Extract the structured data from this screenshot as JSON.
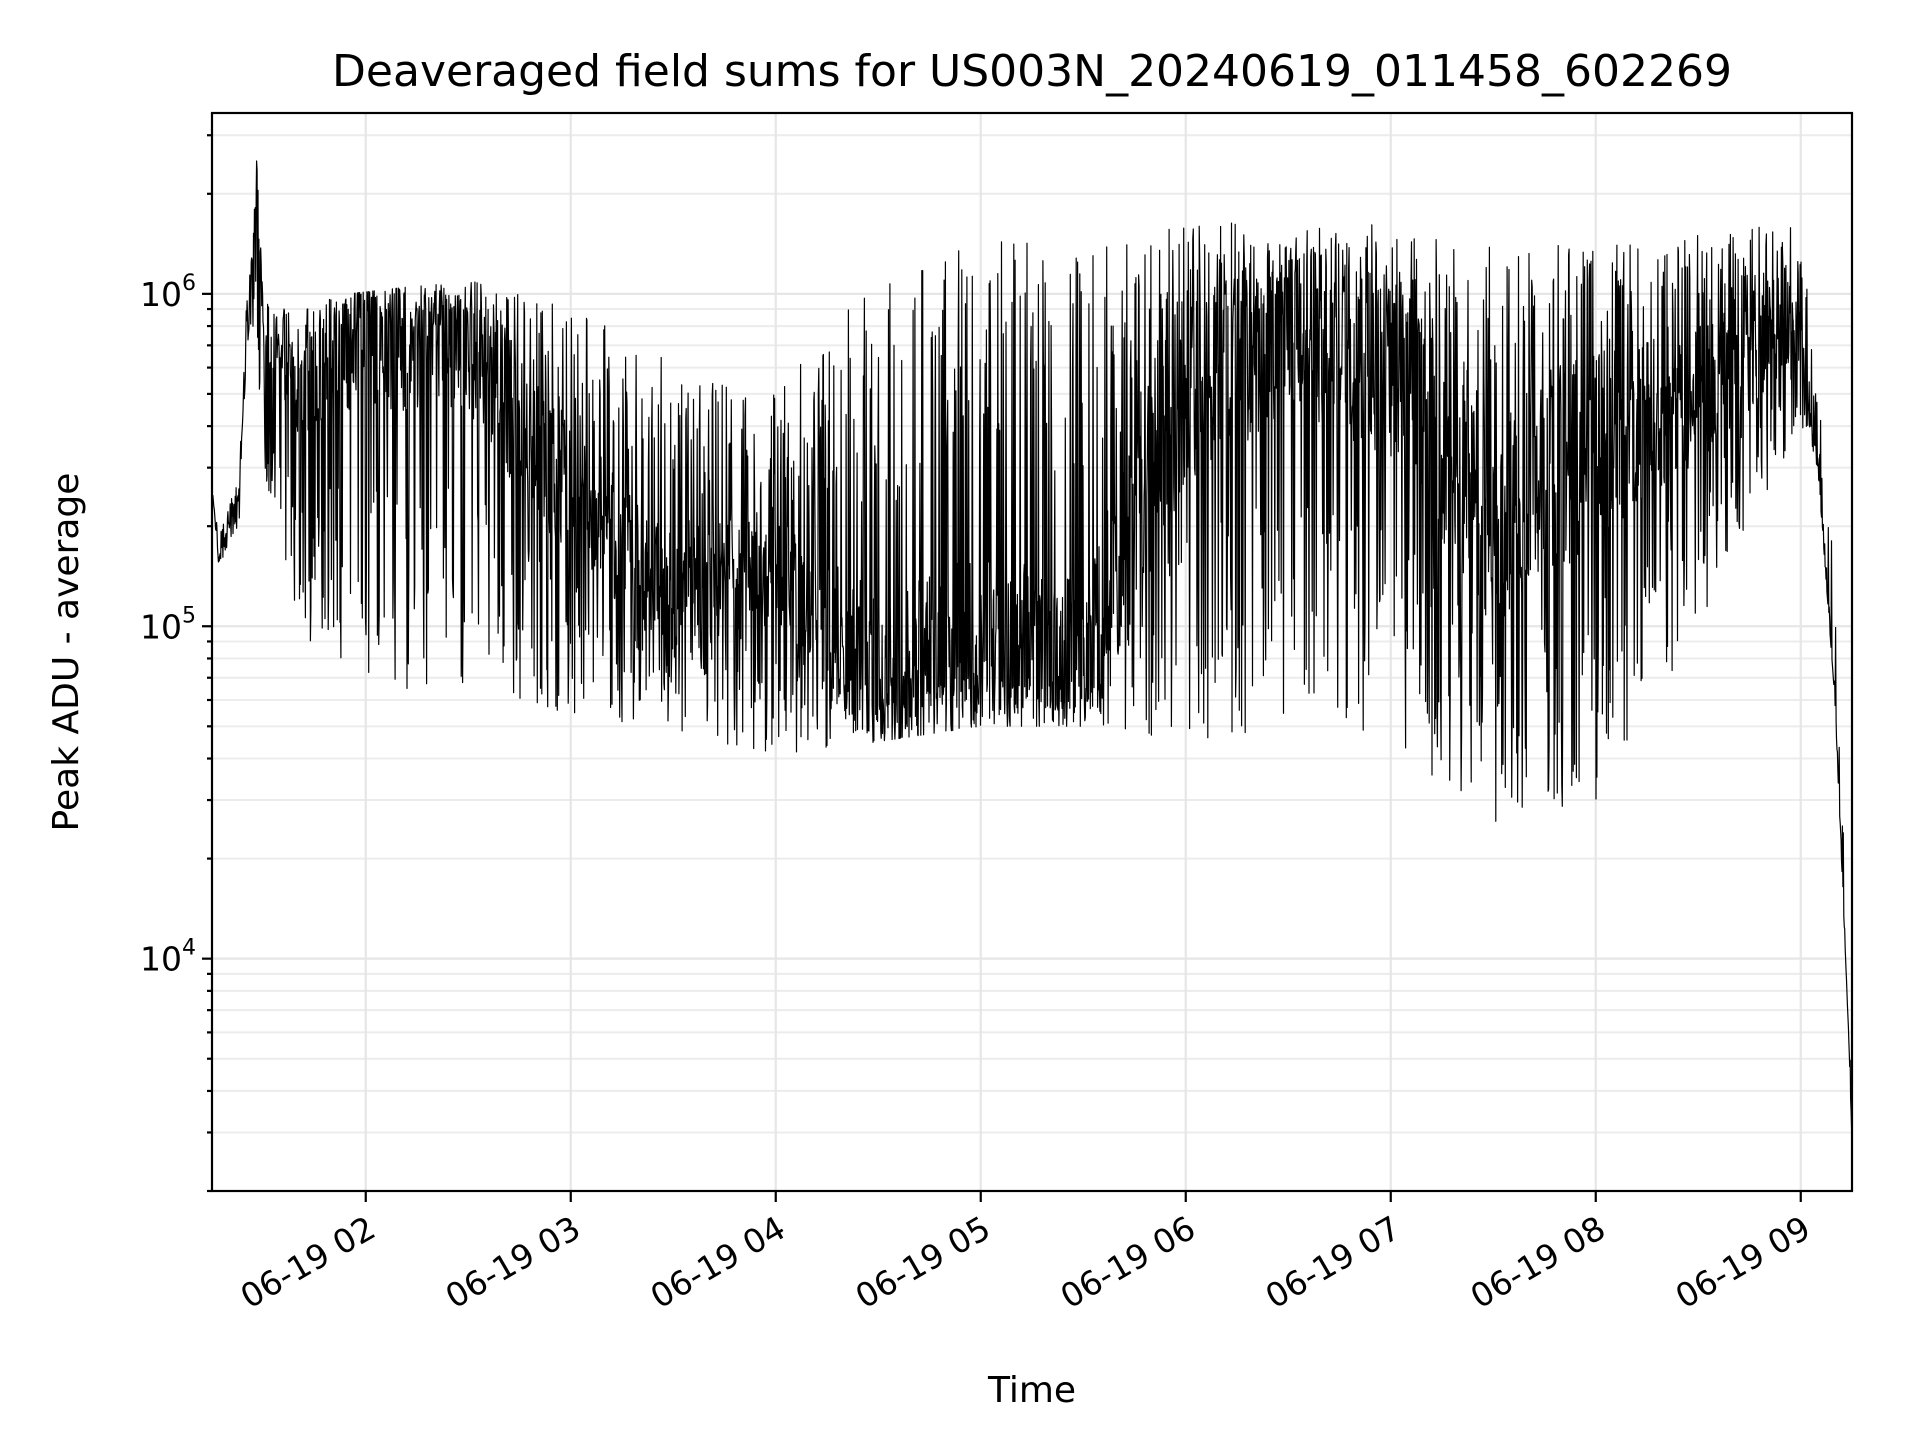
{
  "chart_data": {
    "type": "line",
    "title": "Deaveraged field sums for US003N_20240619_011458_602269",
    "xlabel": "Time",
    "ylabel": "Peak ADU - average",
    "yscale": "log",
    "x_range": [
      "2024-06-19 01:15",
      "2024-06-19 09:15"
    ],
    "ylim": [
      2000,
      3500000
    ],
    "x_ticks": [
      "06-19 02",
      "06-19 03",
      "06-19 04",
      "06-19 05",
      "06-19 06",
      "06-19 07",
      "06-19 08",
      "06-19 09"
    ],
    "y_ticks": [
      {
        "base": "10",
        "exp": "4",
        "value": 10000
      },
      {
        "base": "10",
        "exp": "5",
        "value": 100000
      },
      {
        "base": "10",
        "exp": "6",
        "value": 1000000
      }
    ],
    "grid": true,
    "legend": "none",
    "line_color": "#000000",
    "series": [
      {
        "x": [
          "2024-06-19 01:15",
          "2024-06-19 01:17",
          "2024-06-19 01:20",
          "2024-06-19 01:23",
          "2024-06-19 01:25",
          "2024-06-19 01:27",
          "2024-06-19 01:28",
          "2024-06-19 01:30",
          "2024-06-19 01:40",
          "2024-06-19 01:55",
          "2024-06-19 02:30",
          "2024-06-19 03:00",
          "2024-06-19 03:30",
          "2024-06-19 04:00",
          "2024-06-19 04:30",
          "2024-06-19 05:00",
          "2024-06-19 05:30",
          "2024-06-19 06:00",
          "2024-06-19 06:30",
          "2024-06-19 07:00",
          "2024-06-19 07:30",
          "2024-06-19 08:00",
          "2024-06-19 08:30",
          "2024-06-19 09:00",
          "2024-06-19 09:05",
          "2024-06-19 09:10",
          "2024-06-19 09:14",
          "2024-06-19 09:15"
        ],
        "y": [
          260000,
          160000,
          200000,
          250000,
          800000,
          1400000,
          2600000,
          800000,
          550000,
          700000,
          700000,
          250000,
          130000,
          150000,
          70000,
          90000,
          80000,
          500000,
          800000,
          600000,
          200000,
          350000,
          500000,
          800000,
          300000,
          60000,
          6000,
          2800
        ],
        "min_envelope": [
          250000,
          150000,
          180000,
          200000,
          600000,
          700000,
          700000,
          300000,
          100000,
          60000,
          60000,
          55000,
          45000,
          40000,
          45000,
          50000,
          50000,
          45000,
          50000,
          45000,
          25000,
          30000,
          100000,
          400000,
          300000,
          60000,
          6000,
          2800
        ],
        "max_envelope": [
          260000,
          190000,
          230000,
          290000,
          900000,
          1400000,
          2600000,
          950000,
          900000,
          1000000,
          1100000,
          900000,
          650000,
          500000,
          1200000,
          1600000,
          1400000,
          1600000,
          1700000,
          1600000,
          1400000,
          1400000,
          1500000,
          1650000,
          550000,
          150000,
          9000,
          3000
        ]
      }
    ]
  }
}
